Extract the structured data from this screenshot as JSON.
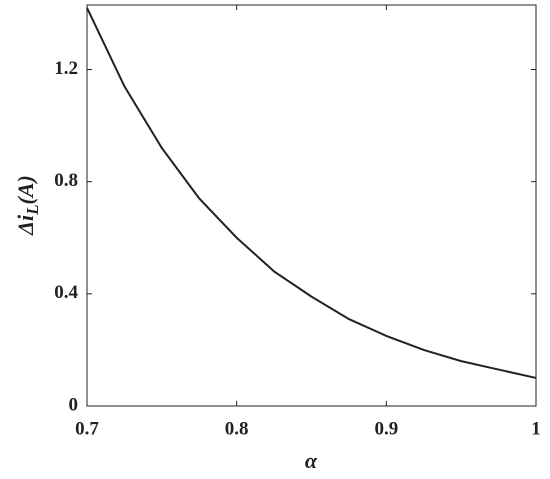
{
  "chart_data": {
    "type": "line",
    "x": [
      0.7,
      0.725,
      0.75,
      0.775,
      0.8,
      0.825,
      0.85,
      0.875,
      0.9,
      0.925,
      0.95,
      0.975,
      1.0
    ],
    "series": [
      {
        "color": "#222222",
        "values": [
          1.42,
          1.14,
          0.92,
          0.74,
          0.6,
          0.48,
          0.39,
          0.31,
          0.25,
          0.2,
          0.16,
          0.13,
          0.1
        ]
      }
    ],
    "xlabel": "α",
    "ylabel": {
      "main": "Δi",
      "subscript": "L",
      "unit": "(A)"
    },
    "xlim": [
      0.7,
      1
    ],
    "xticks": [
      0.7,
      0.8,
      0.9,
      1
    ],
    "ylim": [
      0,
      1.43
    ],
    "yticks": [
      0,
      0.4,
      0.8,
      1.2
    ]
  }
}
